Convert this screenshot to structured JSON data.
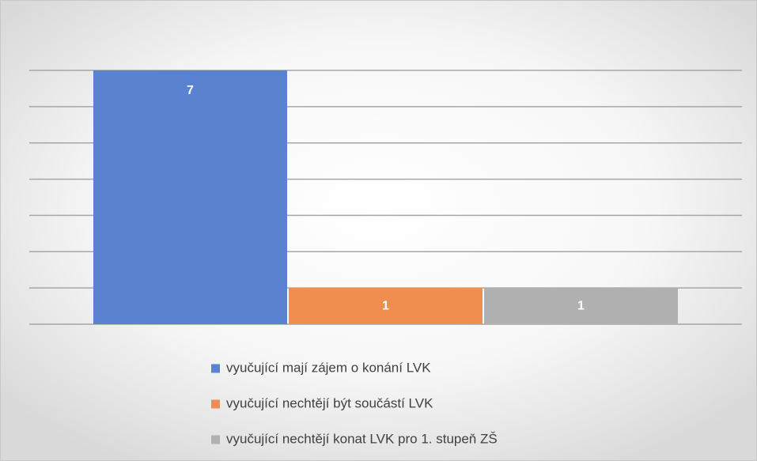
{
  "chart_data": {
    "type": "bar",
    "categories": [
      null
    ],
    "series": [
      {
        "name": "vyučující mají zájem o konání LVK",
        "color": "#5b82d0",
        "values": [
          7
        ]
      },
      {
        "name": "vyučující nechtějí být součástí LVK",
        "color": "#ef8e4e",
        "values": [
          1
        ]
      },
      {
        "name": "vyučující nechtějí konat LVK pro 1. stupeň ZŠ",
        "color": "#b0b0b0",
        "values": [
          1
        ]
      }
    ],
    "ylim": [
      0,
      7
    ],
    "yticks": [
      0,
      1,
      2,
      3,
      4,
      5,
      6,
      7
    ],
    "grid": true,
    "legend": "bottom"
  }
}
